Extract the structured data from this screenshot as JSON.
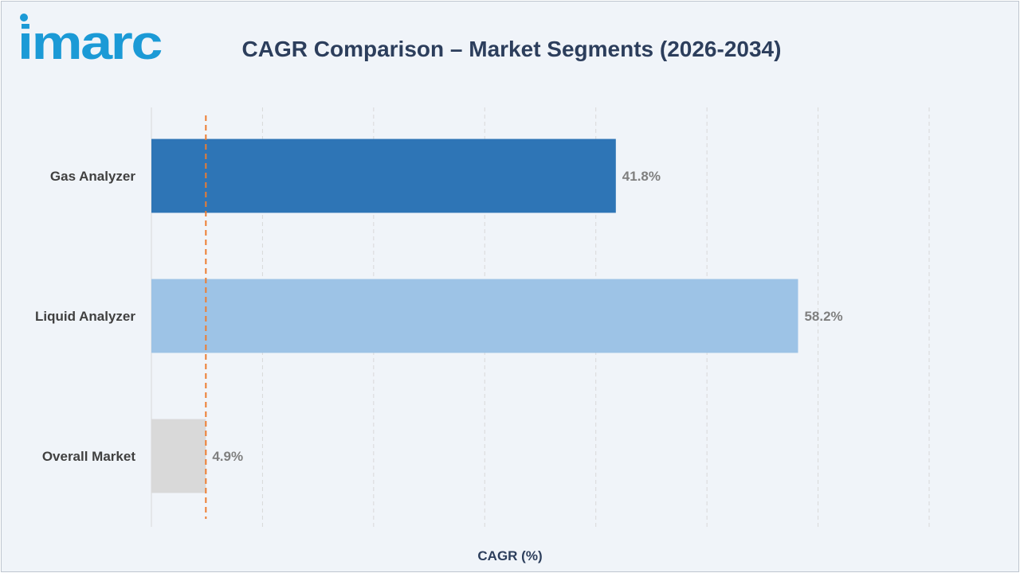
{
  "brand": {
    "logo_text": "imarc",
    "logo_color": "#1b9ad6"
  },
  "chart_data": {
    "type": "bar",
    "orientation": "horizontal",
    "title": "CAGR Comparison – Market Segments (2026-2034)",
    "xlabel": "CAGR (%)",
    "ylabel": "",
    "xlim": [
      0,
      70
    ],
    "grid": true,
    "reference_line": {
      "value": 4.9,
      "style": "dashed",
      "color": "#ed7d31"
    },
    "categories": [
      "Gas Analyzer",
      "Liquid Analyzer",
      "Overall Market"
    ],
    "values": [
      41.8,
      58.2,
      4.9
    ],
    "value_labels": [
      "41.8%",
      "58.2%",
      "4.9%"
    ],
    "colors": [
      "#2e75b6",
      "#9dc3e6",
      "#d9d9d9"
    ]
  }
}
